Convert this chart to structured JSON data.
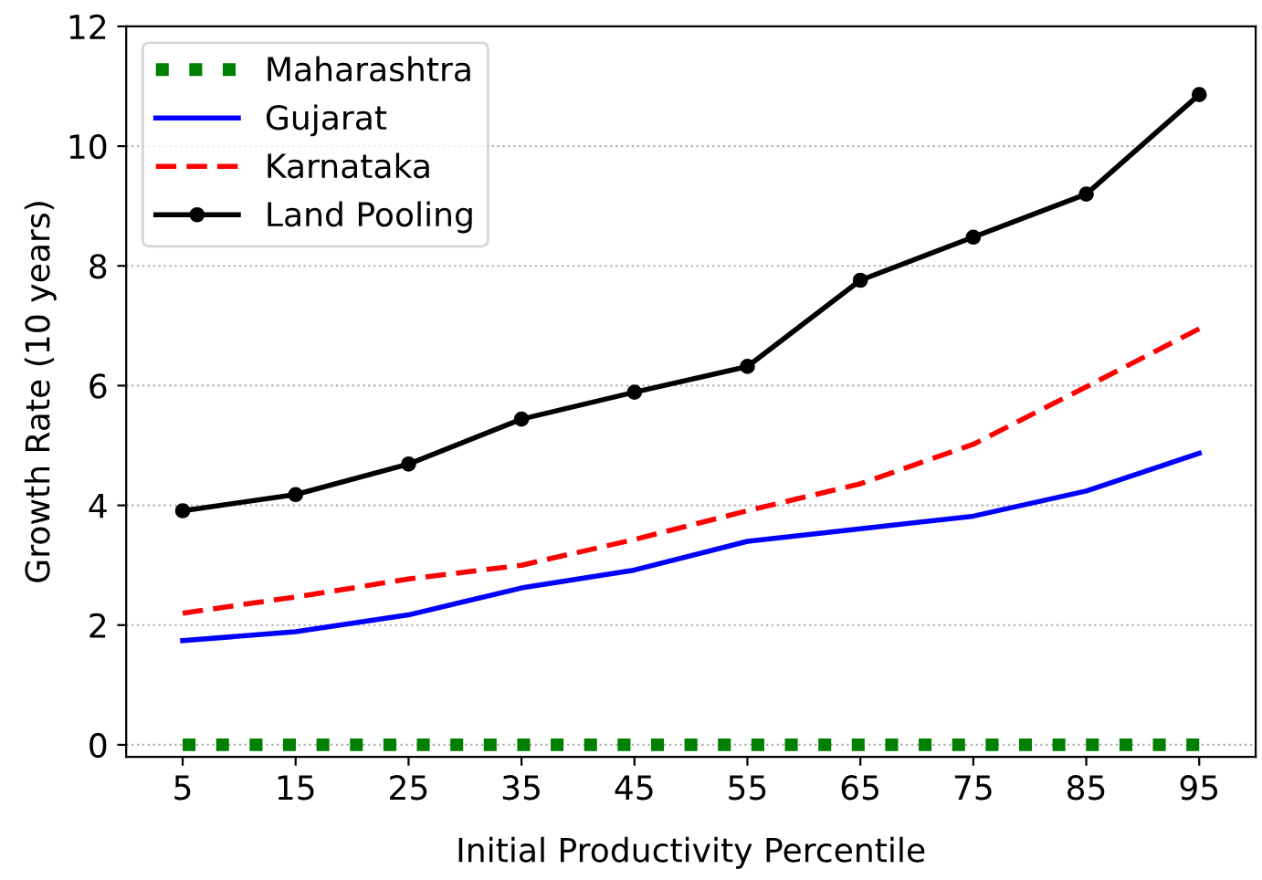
{
  "chart_data": {
    "type": "line",
    "xlabel": "Initial Productivity Percentile",
    "ylabel": "Growth Rate (10 years)",
    "x": [
      5,
      15,
      25,
      35,
      45,
      55,
      65,
      75,
      85,
      95
    ],
    "series": [
      {
        "name": "Maharashtra",
        "color": "#008000",
        "line_style": "dotted",
        "marker": "none",
        "values": [
          0,
          0,
          0,
          0,
          0,
          0,
          0,
          0,
          0,
          0
        ]
      },
      {
        "name": "Gujarat",
        "color": "#0000ff",
        "line_style": "solid",
        "marker": "none",
        "values": [
          1.74,
          1.89,
          2.17,
          2.62,
          2.92,
          3.4,
          3.61,
          3.82,
          4.24,
          4.87
        ]
      },
      {
        "name": "Karnataka",
        "color": "#ff0000",
        "line_style": "dashed",
        "marker": "none",
        "values": [
          2.2,
          2.47,
          2.77,
          3.0,
          3.43,
          3.91,
          4.36,
          5.02,
          5.98,
          6.95
        ]
      },
      {
        "name": "Land Pooling",
        "color": "#000000",
        "line_style": "solid",
        "marker": "circle",
        "values": [
          3.91,
          4.18,
          4.69,
          5.44,
          5.89,
          6.32,
          7.76,
          8.48,
          9.2,
          10.86
        ]
      }
    ],
    "xlim": [
      0,
      100
    ],
    "xticks": [
      5,
      15,
      25,
      35,
      45,
      55,
      65,
      75,
      85,
      95
    ],
    "ylim": [
      -0.2,
      12
    ],
    "yticks": [
      0,
      2,
      4,
      6,
      8,
      10,
      12
    ],
    "grid": "y",
    "legend": "top left"
  }
}
